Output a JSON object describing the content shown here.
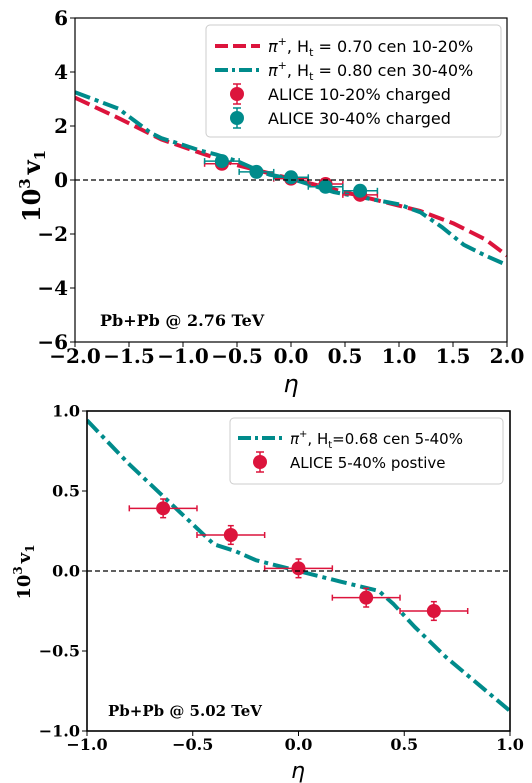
{
  "chart_data": [
    {
      "type": "line",
      "xlabel": "η",
      "ylabel_base": "10",
      "ylabel_exp": "3",
      "ylabel_var": "v",
      "ylabel_sub": "1",
      "xlim": [
        -2.0,
        2.0
      ],
      "ylim": [
        -6,
        6
      ],
      "xticks": [
        "−2.0",
        "−1.5",
        "−1.0",
        "−0.5",
        "0.0",
        "0.5",
        "1.0",
        "1.5",
        "2.0"
      ],
      "yticks": [
        "6",
        "4",
        "2",
        "0",
        "−2",
        "−4",
        "−6"
      ],
      "annotation": "Pb+Pb @ 2.76 TeV",
      "legend_position": "top-right",
      "colors": {
        "crimson": "#dc143c",
        "teal": "#008b8b"
      },
      "series": [
        {
          "name": "π+, Ht = 0.70 cen 10-20%",
          "legend_main": "π",
          "legend_sup": "+",
          "legend_rest": ", H",
          "legend_sub": "t",
          "legend_tail": " = 0.70 cen 10-20%",
          "style": "dashed",
          "color": "#dc143c",
          "x": [
            -2.0,
            -1.6,
            -1.2,
            -0.8,
            -0.5,
            -0.3,
            0.0,
            0.3,
            0.5,
            0.8,
            1.0,
            1.2,
            1.5,
            1.8,
            2.0
          ],
          "y": [
            3.05,
            2.3,
            1.5,
            0.95,
            0.55,
            0.35,
            0.05,
            -0.25,
            -0.45,
            -0.75,
            -0.95,
            -1.15,
            -1.6,
            -2.2,
            -2.8
          ]
        },
        {
          "name": "π+, Ht = 0.80 cen 30-40%",
          "legend_main": "π",
          "legend_sup": "+",
          "legend_rest": ", H",
          "legend_sub": "t",
          "legend_tail": " = 0.80 cen 30-40%",
          "style": "dashdot",
          "color": "#008b8b",
          "x": [
            -2.0,
            -1.6,
            -1.45,
            -1.3,
            -1.2,
            -1.0,
            -0.85,
            -0.7,
            -0.5,
            -0.3,
            -0.2,
            0.0,
            0.2,
            0.4,
            0.6,
            0.8,
            1.0,
            1.2,
            1.4,
            1.6,
            1.8,
            2.0
          ],
          "y": [
            3.25,
            2.65,
            2.2,
            1.75,
            1.55,
            1.3,
            1.1,
            0.95,
            0.7,
            0.35,
            0.2,
            0.05,
            -0.2,
            -0.45,
            -0.6,
            -0.75,
            -0.9,
            -1.2,
            -1.75,
            -2.4,
            -2.8,
            -3.15
          ]
        },
        {
          "name": "ALICE 10-20% charged",
          "style": "marker",
          "color": "#dc143c",
          "x": [
            -0.64,
            0.0,
            0.32,
            0.64
          ],
          "y": [
            0.6,
            0.05,
            -0.15,
            -0.55
          ],
          "xerr": [
            0.16,
            0.16,
            0.16,
            0.16
          ],
          "yerr": [
            0.15,
            0.1,
            0.1,
            0.15
          ]
        },
        {
          "name": "ALICE 30-40% charged",
          "style": "marker",
          "color": "#008b8b",
          "x": [
            -0.64,
            -0.32,
            0.0,
            0.32,
            0.64
          ],
          "y": [
            0.7,
            0.3,
            0.1,
            -0.25,
            -0.4
          ],
          "xerr": [
            0.16,
            0.16,
            0.16,
            0.16,
            0.16
          ],
          "yerr": [
            0.15,
            0.1,
            0.1,
            0.1,
            0.15
          ]
        }
      ]
    },
    {
      "type": "line",
      "xlabel": "η",
      "ylabel_base": "10",
      "ylabel_exp": "3",
      "ylabel_var": "v",
      "ylabel_sub": "1",
      "xlim": [
        -1.0,
        1.0
      ],
      "ylim": [
        -1.2,
        1.2
      ],
      "xticks": [
        "−1.0",
        "−0.5",
        "0.0",
        "0.5",
        "1.0"
      ],
      "yticks": [
        "1.0",
        "0.5",
        "0.0",
        "−0.5",
        "−1.0"
      ],
      "annotation": "Pb+Pb @ 5.02 TeV",
      "legend_position": "top-right",
      "colors": {
        "crimson": "#dc143c",
        "teal": "#008b8b"
      },
      "series": [
        {
          "name": "π+, Ht=0.68 cen 5-40%",
          "legend_main": "π",
          "legend_sup": "+",
          "legend_rest": ", H",
          "legend_sub": "t",
          "legend_tail": "=0.68 cen 5-40%",
          "style": "dashdot",
          "color": "#008b8b",
          "x": [
            -1.0,
            -0.8,
            -0.6,
            -0.5,
            -0.4,
            -0.3,
            -0.2,
            0.0,
            0.2,
            0.38,
            0.45,
            0.55,
            0.7,
            0.85,
            1.0
          ],
          "y": [
            1.13,
            0.8,
            0.5,
            0.35,
            0.2,
            0.15,
            0.08,
            0.0,
            -0.08,
            -0.15,
            -0.25,
            -0.42,
            -0.65,
            -0.85,
            -1.05
          ]
        },
        {
          "name": "ALICE 5-40% postive",
          "style": "marker",
          "color": "#dc143c",
          "x": [
            -0.64,
            -0.32,
            0.0,
            0.32,
            0.64
          ],
          "y": [
            0.47,
            0.27,
            0.02,
            -0.2,
            -0.3
          ],
          "xerr": [
            0.16,
            0.16,
            0.16,
            0.16,
            0.16
          ],
          "yerr": [
            0.07,
            0.07,
            0.07,
            0.07,
            0.07
          ]
        }
      ]
    }
  ]
}
